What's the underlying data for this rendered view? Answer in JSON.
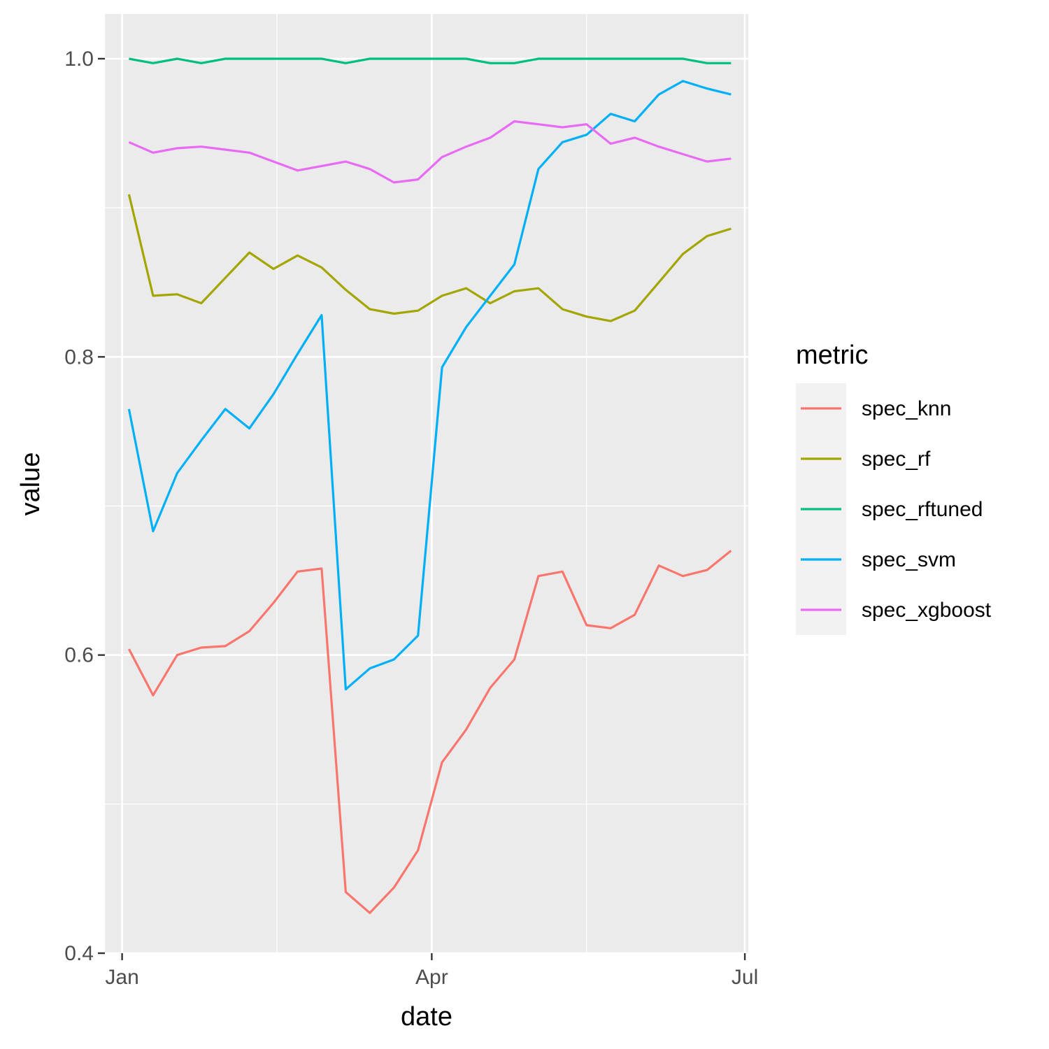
{
  "chart_data": {
    "type": "line",
    "xlabel": "date",
    "ylabel": "value",
    "xlim": [
      "2020-12-27",
      "2021-07-02"
    ],
    "ylim": [
      0.4,
      1.03
    ],
    "x_ticks": [
      {
        "date": "2021-01-01",
        "label": "Jan"
      },
      {
        "date": "2021-04-01",
        "label": "Apr"
      },
      {
        "date": "2021-07-01",
        "label": "Jul"
      }
    ],
    "x_minor_ticks": [
      "2021-02-15",
      "2021-05-16"
    ],
    "y_ticks": [
      {
        "value": 0.4,
        "label": "0.4"
      },
      {
        "value": 0.6,
        "label": "0.6"
      },
      {
        "value": 0.8,
        "label": "0.8"
      },
      {
        "value": 1.0,
        "label": "1.0"
      }
    ],
    "y_minor_ticks": [
      0.5,
      0.7,
      0.9
    ],
    "grid": true,
    "legend": {
      "title": "metric",
      "position": "right"
    },
    "x": [
      "2021-01-03",
      "2021-01-10",
      "2021-01-17",
      "2021-01-24",
      "2021-01-31",
      "2021-02-07",
      "2021-02-14",
      "2021-02-21",
      "2021-02-28",
      "2021-03-07",
      "2021-03-14",
      "2021-03-21",
      "2021-03-28",
      "2021-04-04",
      "2021-04-11",
      "2021-04-18",
      "2021-04-25",
      "2021-05-02",
      "2021-05-09",
      "2021-05-16",
      "2021-05-23",
      "2021-05-30",
      "2021-06-06",
      "2021-06-13",
      "2021-06-20",
      "2021-06-27"
    ],
    "series": [
      {
        "name": "spec_knn",
        "color": "#F8766D",
        "values": [
          0.604,
          0.573,
          0.6,
          0.605,
          0.606,
          0.616,
          0.635,
          0.656,
          0.658,
          0.441,
          0.427,
          0.444,
          0.469,
          0.528,
          0.55,
          0.578,
          0.597,
          0.653,
          0.656,
          0.62,
          0.618,
          0.627,
          0.66,
          0.653,
          0.657,
          0.67
        ]
      },
      {
        "name": "spec_rf",
        "color": "#A3A500",
        "values": [
          0.909,
          0.841,
          0.842,
          0.836,
          0.853,
          0.87,
          0.859,
          0.868,
          0.86,
          0.845,
          0.832,
          0.829,
          0.831,
          0.841,
          0.846,
          0.836,
          0.844,
          0.846,
          0.832,
          0.827,
          0.824,
          0.831,
          0.85,
          0.869,
          0.881,
          0.886
        ]
      },
      {
        "name": "spec_rftuned",
        "color": "#00BF7D",
        "values": [
          1.0,
          0.997,
          1.0,
          0.997,
          1.0,
          1.0,
          1.0,
          1.0,
          1.0,
          0.997,
          1.0,
          1.0,
          1.0,
          1.0,
          1.0,
          0.997,
          0.997,
          1.0,
          1.0,
          1.0,
          1.0,
          1.0,
          1.0,
          1.0,
          0.997,
          0.997
        ]
      },
      {
        "name": "spec_svm",
        "color": "#00B0F6",
        "values": [
          0.765,
          0.683,
          0.722,
          0.744,
          0.765,
          0.752,
          0.775,
          0.802,
          0.828,
          0.577,
          0.591,
          0.597,
          0.613,
          0.793,
          0.82,
          0.841,
          0.862,
          0.926,
          0.944,
          0.949,
          0.963,
          0.958,
          0.976,
          0.985,
          0.98,
          0.976
        ]
      },
      {
        "name": "spec_xgboost",
        "color": "#E76BF3",
        "values": [
          0.944,
          0.937,
          0.94,
          0.941,
          0.939,
          0.937,
          0.931,
          0.925,
          0.928,
          0.931,
          0.926,
          0.917,
          0.919,
          0.934,
          0.941,
          0.947,
          0.958,
          0.956,
          0.954,
          0.956,
          0.943,
          0.947,
          0.941,
          0.936,
          0.931,
          0.933
        ]
      }
    ]
  }
}
